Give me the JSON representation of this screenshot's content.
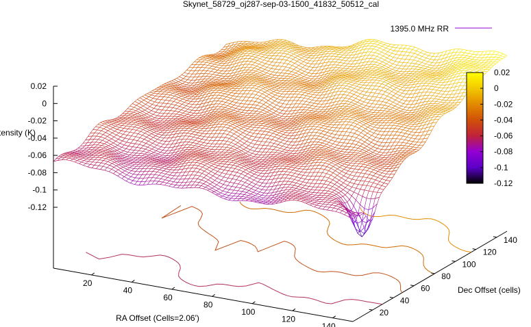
{
  "chart_data": {
    "type": "surface3d",
    "title": "Skynet_58729_oj287-sep-03-1500_41832_50512_cal",
    "legend": {
      "label": "1395.0 MHz RR",
      "color": "#9400d3",
      "placement": "top-right"
    },
    "xlabel": "RA Offset (Cells=2.06')",
    "ylabel": "Dec Offset (cells)",
    "zlabel": "Intensity (K)",
    "xticks": [
      "20",
      "40",
      "60",
      "80",
      "100",
      "120",
      "140"
    ],
    "yticks": [
      "20",
      "40",
      "60",
      "80",
      "100",
      "120",
      "140"
    ],
    "zticks": [
      "0.02",
      "0",
      "-0.02",
      "-0.04",
      "-0.06",
      "-0.08",
      "-0.1",
      "-0.12"
    ],
    "xlim": [
      1,
      150
    ],
    "ylim": [
      1,
      150
    ],
    "zlim": [
      -0.12,
      0.02
    ],
    "colorbar": {
      "range": [
        -0.12,
        0.02
      ],
      "ticks": [
        "0.02",
        "0",
        "-0.02",
        "-0.04",
        "-0.06",
        "-0.08",
        "-0.1",
        "-0.12"
      ],
      "colors": [
        "#000000",
        "#5b00c8",
        "#9400d3",
        "#c0223a",
        "#d05008",
        "#e38a00",
        "#f2c800",
        "#ffff00"
      ]
    },
    "surface": {
      "near_ra_edge_intensity": -0.07,
      "far_corner_intensity": 0.015,
      "dip_minimum": -0.11
    },
    "contour_levels": [
      -0.08,
      -0.06,
      -0.04,
      -0.02,
      0
    ],
    "contour_colors": [
      "#9400d3",
      "#b22f60",
      "#c0521a",
      "#d06a00",
      "#e38a00"
    ]
  }
}
